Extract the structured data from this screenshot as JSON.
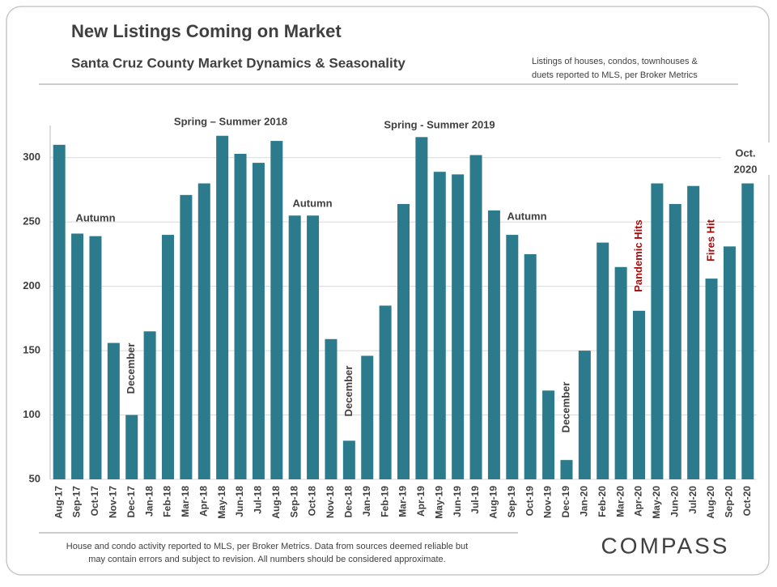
{
  "chart_data": {
    "type": "bar",
    "title": "New Listings Coming on Market",
    "subtitle": "Santa Cruz County Market Dynamics & Seasonality",
    "note": [
      "Listings of houses, condos, townhouses &",
      "duets reported to MLS, per Broker Metrics"
    ],
    "footer": [
      "House and condo activity reported to MLS, per Broker Metrics. Data from sources deemed reliable but",
      "may contain errors and subject to revision. All numbers should be considered approximate."
    ],
    "logo": "COMPASS",
    "categories": [
      "Aug-17",
      "Sep-17",
      "Oct-17",
      "Nov-17",
      "Dec-17",
      "Jan-18",
      "Feb-18",
      "Mar-18",
      "Apr-18",
      "May-18",
      "Jun-18",
      "Jul-18",
      "Aug-18",
      "Sep-18",
      "Oct-18",
      "Nov-18",
      "Dec-18",
      "Jan-19",
      "Feb-19",
      "Mar-19",
      "Apr-19",
      "May-19",
      "Jun-19",
      "Jul-19",
      "Aug-19",
      "Sep-19",
      "Oct-19",
      "Nov-19",
      "Dec-19",
      "Jan-20",
      "Feb-20",
      "Mar-20",
      "Apr-20",
      "May-20",
      "Jun-20",
      "Jul-20",
      "Aug-20",
      "Sep-20",
      "Oct-20"
    ],
    "values": [
      310,
      241,
      239,
      156,
      100,
      165,
      240,
      271,
      280,
      317,
      303,
      296,
      313,
      255,
      255,
      159,
      80,
      146,
      185,
      264,
      316,
      289,
      287,
      302,
      259,
      240,
      225,
      119,
      65,
      150,
      234,
      215,
      181,
      280,
      264,
      278,
      206,
      231,
      280
    ],
    "color": "#2b7b8c",
    "ylim": [
      50,
      325
    ],
    "yticks": [
      50,
      100,
      150,
      200,
      250,
      300
    ],
    "grid": true,
    "annotations": [
      {
        "text": "Spring – Summer 2018"
      },
      {
        "text": "Spring - Summer 2019"
      },
      {
        "text": "Autumn"
      },
      {
        "text": "Autumn"
      },
      {
        "text": "Autumn"
      },
      {
        "text": "December"
      },
      {
        "text": "December"
      },
      {
        "text": "December"
      },
      {
        "text": "Pandemic Hits"
      },
      {
        "text": "Fires Hit"
      },
      {
        "text": [
          "Oct.",
          "2020"
        ]
      }
    ]
  }
}
